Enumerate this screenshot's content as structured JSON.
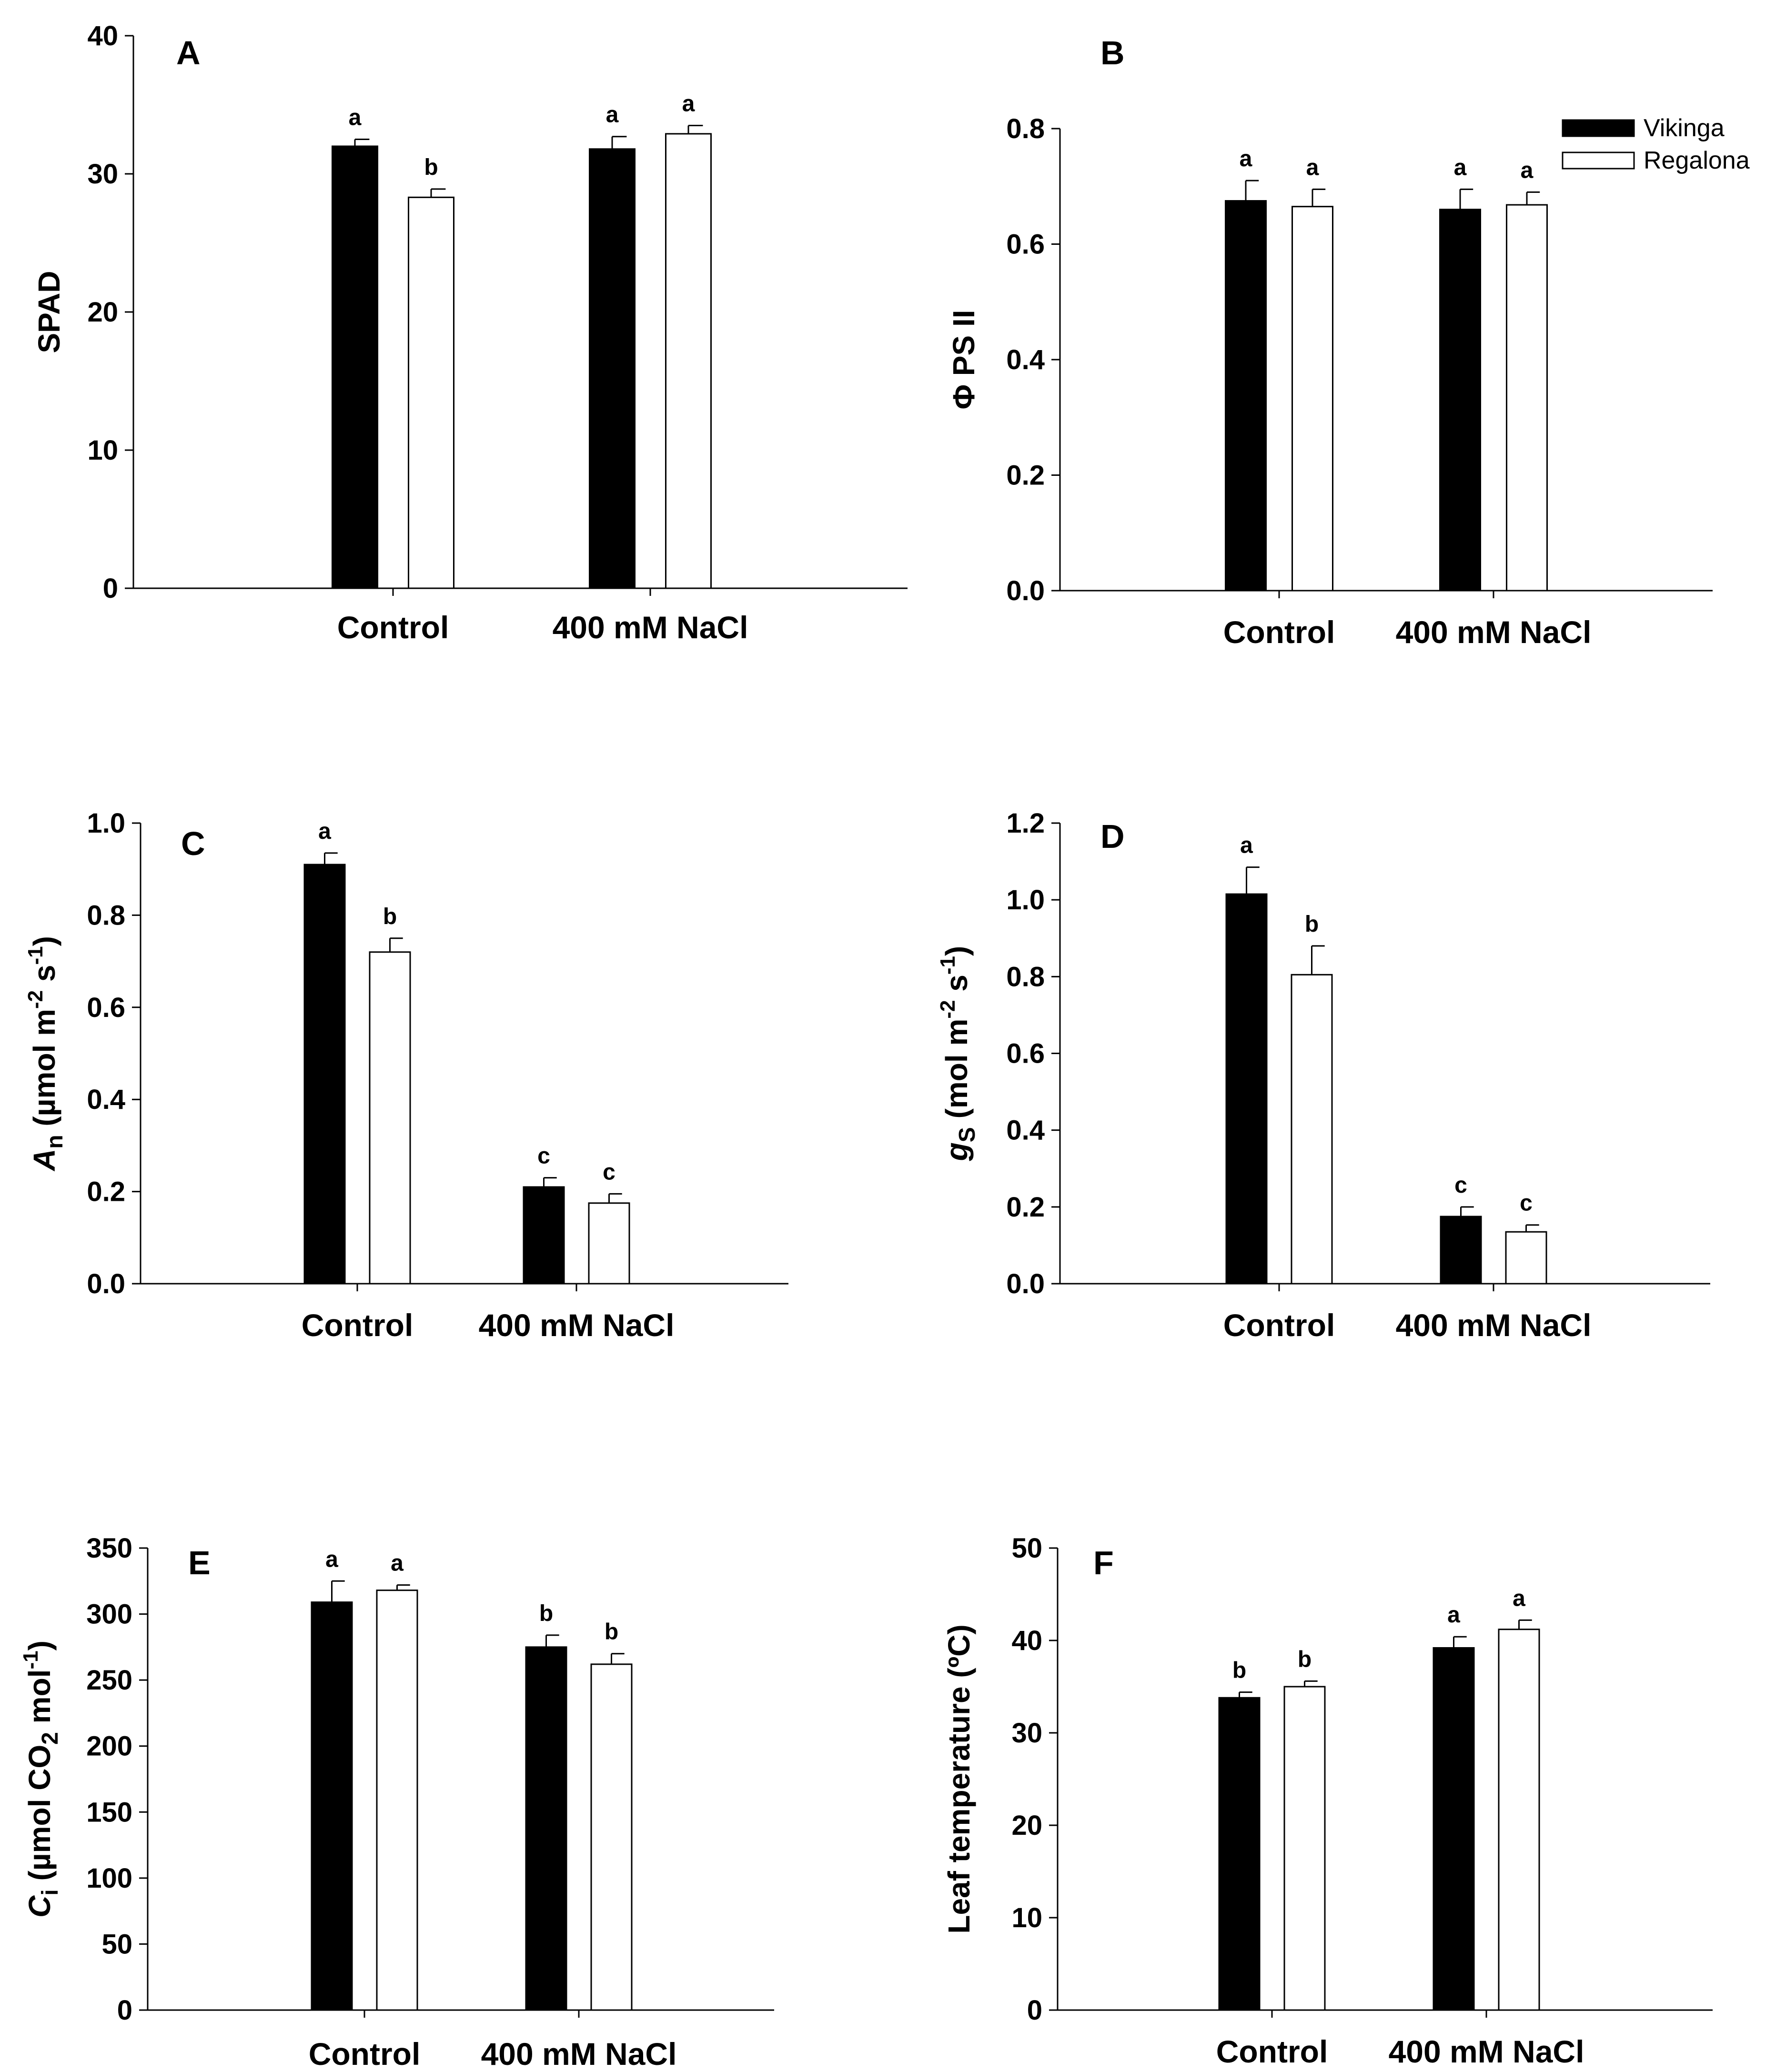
{
  "figure": {
    "legend": [
      {
        "name": "Vikinga",
        "fill": "#000000"
      },
      {
        "name": "Regalona",
        "fill": "#ffffff"
      }
    ]
  },
  "chart_data": [
    {
      "panel": "A",
      "type": "bar",
      "categories": [
        "Control",
        "400 mM NaCl"
      ],
      "ylabel": [
        "SPAD"
      ],
      "ylim": [
        0,
        40
      ],
      "yticks": [
        "0",
        "10",
        "20",
        "30",
        "40"
      ],
      "series": [
        {
          "name": "Vikinga",
          "values": [
            32.0,
            31.8
          ],
          "errors": [
            0.5,
            0.9
          ],
          "letters": [
            "a",
            "a"
          ]
        },
        {
          "name": "Regalona",
          "values": [
            28.3,
            32.9
          ],
          "errors": [
            0.6,
            0.6
          ],
          "letters": [
            "b",
            "a"
          ]
        }
      ]
    },
    {
      "panel": "B",
      "type": "bar",
      "categories": [
        "Control",
        "400 mM NaCl"
      ],
      "ylabel": [
        "Φ PS II"
      ],
      "ylim": [
        0,
        0.8
      ],
      "yticks": [
        "0.0",
        "0.2",
        "0.4",
        "0.6",
        "0.8"
      ],
      "series": [
        {
          "name": "Vikinga",
          "values": [
            0.675,
            0.66
          ],
          "errors": [
            0.035,
            0.035
          ],
          "letters": [
            "a",
            "a"
          ]
        },
        {
          "name": "Regalona",
          "values": [
            0.665,
            0.668
          ],
          "errors": [
            0.03,
            0.022
          ],
          "letters": [
            "a",
            "a"
          ]
        }
      ]
    },
    {
      "panel": "C",
      "type": "bar",
      "categories": [
        "Control",
        "400 mM NaCl"
      ],
      "ylabel": [
        "A",
        "n",
        " (µmol m",
        "-2",
        " s",
        "-1",
        ")"
      ],
      "ylim": [
        0,
        1.0
      ],
      "yticks": [
        "0.0",
        "0.2",
        "0.4",
        "0.6",
        "0.8",
        "1.0"
      ],
      "series": [
        {
          "name": "Vikinga",
          "values": [
            0.91,
            0.21
          ],
          "errors": [
            0.025,
            0.02
          ],
          "letters": [
            "a",
            "c"
          ]
        },
        {
          "name": "Regalona",
          "values": [
            0.72,
            0.175
          ],
          "errors": [
            0.03,
            0.02
          ],
          "letters": [
            "b",
            "c"
          ]
        }
      ]
    },
    {
      "panel": "D",
      "type": "bar",
      "categories": [
        "Control",
        "400 mM NaCl"
      ],
      "ylabel": [
        "g",
        "S",
        " (mol m",
        "-2",
        " s",
        "-1",
        ")"
      ],
      "ylim": [
        0,
        1.2
      ],
      "yticks": [
        "0.0",
        "0.2",
        "0.4",
        "0.6",
        "0.8",
        "1.0",
        "1.2"
      ],
      "series": [
        {
          "name": "Vikinga",
          "values": [
            1.015,
            0.175
          ],
          "errors": [
            0.07,
            0.025
          ],
          "letters": [
            "a",
            "c"
          ]
        },
        {
          "name": "Regalona",
          "values": [
            0.805,
            0.135
          ],
          "errors": [
            0.075,
            0.018
          ],
          "letters": [
            "b",
            "c"
          ]
        }
      ]
    },
    {
      "panel": "E",
      "type": "bar",
      "categories": [
        "Control",
        "400 mM NaCl"
      ],
      "ylabel": [
        "C",
        "i",
        " (µmol CO",
        "2",
        " mol",
        "-1",
        ")"
      ],
      "ylim": [
        0,
        350
      ],
      "yticks": [
        "0",
        "50",
        "100",
        "150",
        "200",
        "250",
        "300",
        "350"
      ],
      "series": [
        {
          "name": "Vikinga",
          "values": [
            309,
            275
          ],
          "errors": [
            16,
            9
          ],
          "letters": [
            "a",
            "b"
          ]
        },
        {
          "name": "Regalona",
          "values": [
            318,
            262
          ],
          "errors": [
            4,
            8
          ],
          "letters": [
            "a",
            "b"
          ]
        }
      ]
    },
    {
      "panel": "F",
      "type": "bar",
      "categories": [
        "Control",
        "400 mM NaCl"
      ],
      "ylabel": [
        "Leaf temperature (ºC)"
      ],
      "ylim": [
        0,
        50
      ],
      "yticks": [
        "0",
        "10",
        "20",
        "30",
        "40",
        "50"
      ],
      "series": [
        {
          "name": "Vikinga",
          "values": [
            33.8,
            39.2
          ],
          "errors": [
            0.6,
            1.2
          ],
          "letters": [
            "b",
            "a"
          ]
        },
        {
          "name": "Regalona",
          "values": [
            35.0,
            41.2
          ],
          "errors": [
            0.6,
            1.0
          ],
          "letters": [
            "b",
            "a"
          ]
        }
      ]
    }
  ]
}
